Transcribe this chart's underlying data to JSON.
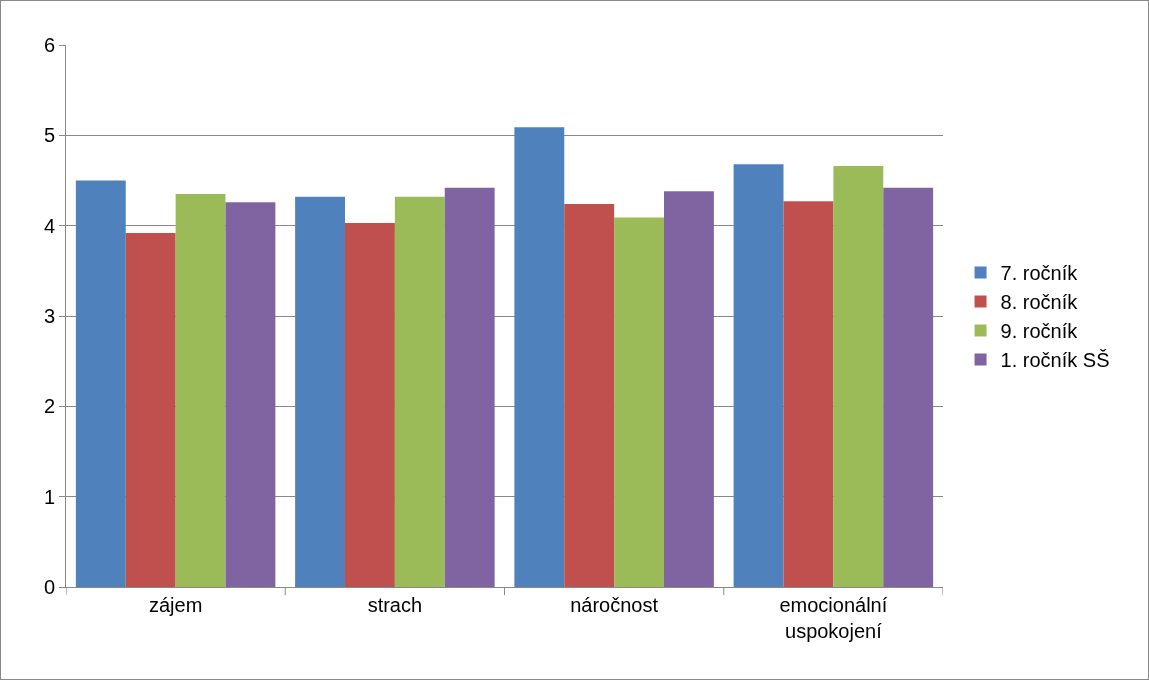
{
  "chart_data": {
    "type": "bar",
    "categories": [
      "zájem",
      "strach",
      "náročnost",
      "emocionální uspokojení"
    ],
    "series": [
      {
        "name": "7. ročník",
        "color": "#4f81bd",
        "values": [
          4.5,
          4.32,
          5.09,
          4.68
        ]
      },
      {
        "name": "8. ročník",
        "color": "#c0504d",
        "values": [
          3.92,
          4.03,
          4.24,
          4.27
        ]
      },
      {
        "name": "9. ročník",
        "color": "#9bbb59",
        "values": [
          4.35,
          4.32,
          4.09,
          4.66
        ]
      },
      {
        "name": "1. ročník SŠ",
        "color": "#8064a2",
        "values": [
          4.26,
          4.42,
          4.38,
          4.42
        ]
      }
    ],
    "ylim": [
      0,
      6
    ],
    "yticks": [
      0,
      1,
      2,
      3,
      4,
      5,
      6
    ],
    "grid": "y",
    "legend": "right"
  }
}
